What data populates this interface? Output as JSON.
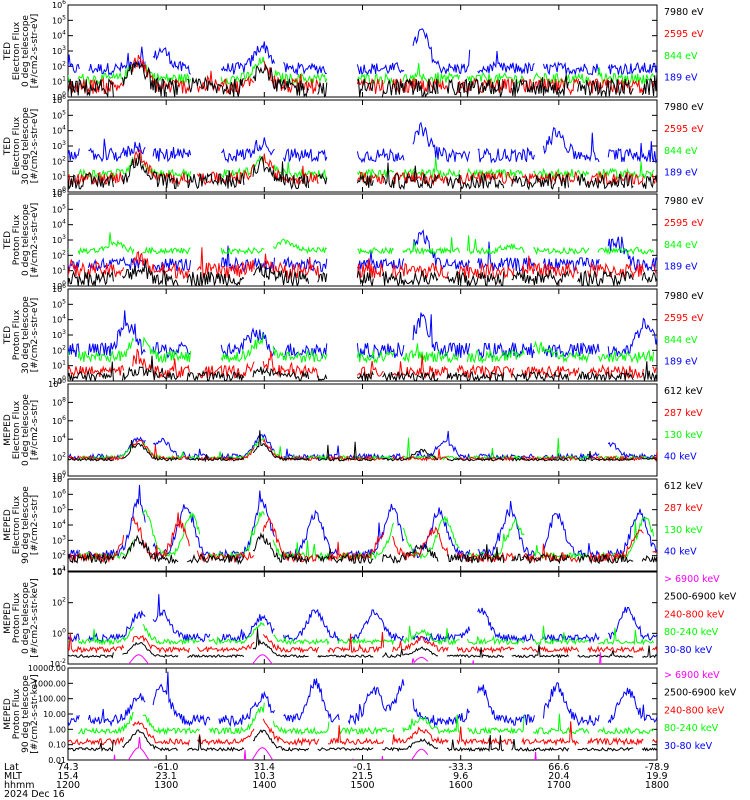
{
  "chart_data": [
    {
      "type": "line",
      "ylabel": [
        "TED",
        "Electron Flux",
        "0 deg telescope",
        "[#/cm2-s-str-eV]"
      ],
      "yscale": "log",
      "ylim_exp": [
        0,
        6
      ],
      "ticks": [
        "10^0",
        "10^1",
        "10^2",
        "10^3",
        "10^4",
        "10^5",
        "10^6"
      ],
      "legend": [
        {
          "label": "7980 eV",
          "color": "#000000"
        },
        {
          "label": "2595 eV",
          "color": "#ff0000"
        },
        {
          "label": "844 eV",
          "color": "#00ff00"
        },
        {
          "label": "189 eV",
          "color": "#0000ff"
        }
      ],
      "series": [
        {
          "color": "#0000ff",
          "base": 1.85,
          "noise": 0.4,
          "bumps": [
            [
              0.12,
              0.5
            ],
            [
              0.16,
              1.2
            ],
            [
              0.33,
              1.5
            ],
            [
              0.6,
              2.4
            ]
          ]
        },
        {
          "color": "#00ff00",
          "base": 1.2,
          "noise": 0.35,
          "bumps": [
            [
              0.12,
              1.2
            ],
            [
              0.33,
              1.1
            ]
          ]
        },
        {
          "color": "#ff0000",
          "base": 0.7,
          "noise": 0.5,
          "bumps": [
            [
              0.12,
              1.6
            ],
            [
              0.33,
              1.4
            ]
          ]
        },
        {
          "color": "#000000",
          "base": 0.6,
          "noise": 0.6,
          "bumps": [
            [
              0.12,
              1.7
            ],
            [
              0.33,
              1.5
            ]
          ]
        }
      ]
    },
    {
      "type": "line",
      "ylabel": [
        "TED",
        "Electron Flux",
        "30 deg telescope",
        "[#/cm2-s-str-eV]"
      ],
      "yscale": "log",
      "ylim_exp": [
        0,
        6
      ],
      "ticks": [
        "10^0",
        "10^1",
        "10^2",
        "10^3",
        "10^4",
        "10^5",
        "10^6"
      ],
      "legend": [
        {
          "label": "7980 eV",
          "color": "#000000"
        },
        {
          "label": "2595 eV",
          "color": "#ff0000"
        },
        {
          "label": "844 eV",
          "color": "#00ff00"
        },
        {
          "label": "189 eV",
          "color": "#0000ff"
        }
      ],
      "series": [
        {
          "color": "#0000ff",
          "base": 2.4,
          "noise": 0.45,
          "bumps": [
            [
              0.12,
              0.6
            ],
            [
              0.33,
              0.8
            ],
            [
              0.6,
              1.6
            ],
            [
              0.83,
              1.5
            ]
          ]
        },
        {
          "color": "#00ff00",
          "base": 1.2,
          "noise": 0.3,
          "bumps": [
            [
              0.12,
              1.0
            ],
            [
              0.33,
              1.0
            ]
          ]
        },
        {
          "color": "#ff0000",
          "base": 0.9,
          "noise": 0.4,
          "bumps": [
            [
              0.12,
              1.5
            ],
            [
              0.33,
              1.3
            ]
          ]
        },
        {
          "color": "#000000",
          "base": 0.7,
          "noise": 0.5,
          "bumps": [
            [
              0.12,
              1.4
            ],
            [
              0.33,
              1.2
            ]
          ]
        }
      ]
    },
    {
      "type": "line",
      "ylabel": [
        "TED",
        "Proton Flux",
        "0 deg telescope",
        "[#/cm2-s-str-eV]"
      ],
      "yscale": "log",
      "ylim_exp": [
        0,
        6
      ],
      "ticks": [
        "10^0",
        "10^1",
        "10^2",
        "10^3",
        "10^4",
        "10^5",
        "10^6"
      ],
      "legend": [
        {
          "label": "7980 eV",
          "color": "#000000"
        },
        {
          "label": "2595 eV",
          "color": "#ff0000"
        },
        {
          "label": "844 eV",
          "color": "#00ff00"
        },
        {
          "label": "189 eV",
          "color": "#0000ff"
        }
      ],
      "series": [
        {
          "color": "#0000ff",
          "base": 1.4,
          "noise": 0.45,
          "bumps": [
            [
              0.6,
              2.0
            ],
            [
              0.93,
              1.5
            ]
          ]
        },
        {
          "color": "#00ff00",
          "base": 2.3,
          "noise": 0.2,
          "bumps": [
            [
              0.08,
              0.5
            ],
            [
              0.37,
              0.6
            ],
            [
              0.75,
              0.3
            ]
          ]
        },
        {
          "color": "#ff0000",
          "base": 1.0,
          "noise": 0.5,
          "bumps": [
            [
              0.12,
              0.8
            ],
            [
              0.33,
              0.7
            ]
          ]
        },
        {
          "color": "#000000",
          "base": 0.5,
          "noise": 0.5,
          "bumps": [
            [
              0.12,
              0.6
            ],
            [
              0.33,
              0.5
            ]
          ]
        }
      ]
    },
    {
      "type": "line",
      "ylabel": [
        "TED",
        "Proton Flux",
        "30 deg telescope",
        "[#/cm2-s-str-eV]"
      ],
      "yscale": "log",
      "ylim_exp": [
        0,
        6
      ],
      "ticks": [
        "10^0",
        "10^1",
        "10^2",
        "10^3",
        "10^4",
        "10^5",
        "10^6"
      ],
      "legend": [
        {
          "label": "7980 eV",
          "color": "#000000"
        },
        {
          "label": "2595 eV",
          "color": "#ff0000"
        },
        {
          "label": "844 eV",
          "color": "#00ff00"
        },
        {
          "label": "189 eV",
          "color": "#0000ff"
        }
      ],
      "series": [
        {
          "color": "#0000ff",
          "base": 2.0,
          "noise": 0.5,
          "bumps": [
            [
              0.1,
              1.6
            ],
            [
              0.32,
              1.2
            ],
            [
              0.6,
              2.0
            ],
            [
              0.98,
              1.8
            ]
          ]
        },
        {
          "color": "#00ff00",
          "base": 1.6,
          "noise": 0.4,
          "bumps": [
            [
              0.12,
              1.2
            ],
            [
              0.33,
              1.2
            ],
            [
              0.8,
              0.6
            ]
          ]
        },
        {
          "color": "#ff0000",
          "base": 0.6,
          "noise": 0.4,
          "bumps": [
            [
              0.12,
              0.9
            ],
            [
              0.33,
              0.7
            ]
          ]
        },
        {
          "color": "#000000",
          "base": 0.3,
          "noise": 0.3,
          "bumps": [
            [
              0.12,
              0.4
            ],
            [
              0.33,
              0.4
            ]
          ]
        }
      ]
    },
    {
      "type": "line",
      "ylabel": [
        "MEPED",
        "Electron Flux",
        "0 deg telescope",
        "[#/cm2-s-str]"
      ],
      "yscale": "log",
      "ylim_exp": [
        0,
        10
      ],
      "ticks": [
        "10^0",
        "10^2",
        "10^4",
        "10^6",
        "10^8",
        "10^10"
      ],
      "legend": [
        {
          "label": "612 keV",
          "color": "#000000"
        },
        {
          "label": "287 keV",
          "color": "#ff0000"
        },
        {
          "label": "130 keV",
          "color": "#00ff00"
        },
        {
          "label": "40 keV",
          "color": "#0000ff"
        }
      ],
      "series": [
        {
          "color": "#0000ff",
          "base": 2.1,
          "noise": 0.3,
          "bumps": [
            [
              0.12,
              2.0
            ],
            [
              0.16,
              1.8
            ],
            [
              0.33,
              2.2
            ],
            [
              0.64,
              1.8
            ],
            [
              0.92,
              1.4
            ]
          ]
        },
        {
          "color": "#00ff00",
          "base": 2.0,
          "noise": 0.2,
          "bumps": [
            [
              0.12,
              1.9
            ],
            [
              0.33,
              2.0
            ]
          ]
        },
        {
          "color": "#ff0000",
          "base": 1.9,
          "noise": 0.2,
          "bumps": [
            [
              0.12,
              1.9
            ],
            [
              0.33,
              1.9
            ]
          ]
        },
        {
          "color": "#000000",
          "base": 1.8,
          "noise": 0.15,
          "bumps": [
            [
              0.12,
              1.6
            ],
            [
              0.33,
              1.6
            ],
            [
              0.6,
              1.0
            ]
          ]
        }
      ]
    },
    {
      "type": "line",
      "ylabel": [
        "MEPED",
        "Electron Flux",
        "90 deg telescope",
        "[#/cm2-s-str]"
      ],
      "yscale": "log",
      "ylim_exp": [
        1,
        7
      ],
      "ticks": [
        "10^1",
        "10^2",
        "10^3",
        "10^4",
        "10^5",
        "10^6",
        "10^7"
      ],
      "legend": [
        {
          "label": "612 keV",
          "color": "#000000"
        },
        {
          "label": "287 keV",
          "color": "#ff0000"
        },
        {
          "label": "130 keV",
          "color": "#00ff00"
        },
        {
          "label": "40 keV",
          "color": "#0000ff"
        }
      ],
      "series": [
        {
          "color": "#0000ff",
          "base": 2.1,
          "noise": 0.3,
          "bumps": [
            [
              0.12,
              3.4
            ],
            [
              0.2,
              3.2
            ],
            [
              0.33,
              3.4
            ],
            [
              0.42,
              2.6
            ],
            [
              0.55,
              3.0
            ],
            [
              0.63,
              2.8
            ],
            [
              0.75,
              2.8
            ],
            [
              0.83,
              2.6
            ],
            [
              0.97,
              2.8
            ]
          ]
        },
        {
          "color": "#00ff00",
          "base": 2.0,
          "noise": 0.2,
          "bumps": [
            [
              0.13,
              2.8
            ],
            [
              0.21,
              2.6
            ],
            [
              0.33,
              2.8
            ],
            [
              0.56,
              2.4
            ],
            [
              0.64,
              2.4
            ],
            [
              0.76,
              2.2
            ],
            [
              0.98,
              2.4
            ]
          ]
        },
        {
          "color": "#ff0000",
          "base": 1.9,
          "noise": 0.3,
          "bumps": [
            [
              0.11,
              2.6
            ],
            [
              0.19,
              2.2
            ],
            [
              0.34,
              2.4
            ],
            [
              0.54,
              1.8
            ],
            [
              0.62,
              1.8
            ],
            [
              0.97,
              1.8
            ]
          ]
        },
        {
          "color": "#000000",
          "base": 1.8,
          "noise": 0.3,
          "bumps": [
            [
              0.12,
              1.2
            ],
            [
              0.33,
              1.4
            ],
            [
              0.6,
              0.8
            ]
          ]
        }
      ]
    },
    {
      "type": "line",
      "ylabel": [
        "MEPED",
        "Proton Flux",
        "0 deg telescope",
        "[#/cm2-s-str-keV]"
      ],
      "yscale": "log",
      "ylim_exp": [
        -2,
        5
      ],
      "ticks": [
        "10^-2",
        "10^0",
        "10^2",
        "10^4"
      ],
      "legend": [
        {
          "label": "> 6900 keV",
          "color": "#ff00ff"
        },
        {
          "label": "2500-6900 keV",
          "color": "#000000"
        },
        {
          "label": "240-800 keV",
          "color": "#ff0000"
        },
        {
          "label": "80-240 keV",
          "color": "#00ff00"
        },
        {
          "label": "30-80 keV",
          "color": "#0000ff"
        }
      ],
      "series": [
        {
          "color": "#0000ff",
          "base": 0.0,
          "noise": 0.3,
          "bumps": [
            [
              0.12,
              1.8
            ],
            [
              0.16,
              2.0
            ],
            [
              0.33,
              1.6
            ],
            [
              0.42,
              2.0
            ],
            [
              0.52,
              2.0
            ],
            [
              0.7,
              2.2
            ],
            [
              0.95,
              2.2
            ]
          ]
        },
        {
          "color": "#00ff00",
          "base": -0.3,
          "noise": 0.2,
          "bumps": [
            [
              0.12,
              1.5
            ],
            [
              0.33,
              1.4
            ],
            [
              0.6,
              0.8
            ]
          ]
        },
        {
          "color": "#ff0000",
          "base": -0.9,
          "noise": 0.2,
          "bumps": [
            [
              0.12,
              1.0
            ],
            [
              0.33,
              1.0
            ],
            [
              0.6,
              0.8
            ]
          ]
        },
        {
          "color": "#000000",
          "base": -1.4,
          "noise": 0.1,
          "bumps": [
            [
              0.12,
              1.0
            ],
            [
              0.33,
              1.0
            ],
            [
              0.6,
              0.6
            ]
          ]
        },
        {
          "color": "#ff00ff",
          "base": -2.5,
          "noise": 0.0,
          "bumps": [
            [
              0.12,
              1.2
            ],
            [
              0.33,
              1.2
            ],
            [
              0.6,
              1.0
            ]
          ]
        }
      ]
    },
    {
      "type": "line",
      "ylabel": [
        "MEPED",
        "Proton Flux",
        "90 deg telescope",
        "[#/cm2-s-str-keV]"
      ],
      "yscale": "log",
      "ylim_exp": [
        -2,
        4
      ],
      "ticks": [
        "0.01",
        "0.10",
        "1.00",
        "10.00",
        "100.00",
        "1000.00",
        "10000.00"
      ],
      "legend": [
        {
          "label": "> 6900 keV",
          "color": "#ff00ff"
        },
        {
          "label": "2500-6900 keV",
          "color": "#000000"
        },
        {
          "label": "240-800 keV",
          "color": "#ff0000"
        },
        {
          "label": "80-240 keV",
          "color": "#00ff00"
        },
        {
          "label": "30-80 keV",
          "color": "#0000ff"
        }
      ],
      "series": [
        {
          "color": "#0000ff",
          "base": 0.6,
          "noise": 0.35,
          "bumps": [
            [
              0.12,
              1.6
            ],
            [
              0.16,
              2.2
            ],
            [
              0.33,
              1.5
            ],
            [
              0.42,
              2.4
            ],
            [
              0.52,
              2.0
            ],
            [
              0.57,
              2.4
            ],
            [
              0.7,
              2.2
            ],
            [
              0.83,
              2.2
            ],
            [
              0.95,
              2.0
            ]
          ]
        },
        {
          "color": "#00ff00",
          "base": -0.1,
          "noise": 0.2,
          "bumps": [
            [
              0.12,
              1.4
            ],
            [
              0.33,
              1.4
            ],
            [
              0.6,
              0.8
            ]
          ]
        },
        {
          "color": "#ff0000",
          "base": -0.8,
          "noise": 0.2,
          "bumps": [
            [
              0.12,
              1.3
            ],
            [
              0.33,
              1.3
            ],
            [
              0.6,
              0.8
            ]
          ]
        },
        {
          "color": "#000000",
          "base": -1.3,
          "noise": 0.1,
          "bumps": [
            [
              0.12,
              1.2
            ],
            [
              0.33,
              1.2
            ],
            [
              0.6,
              0.6
            ]
          ]
        },
        {
          "color": "#ff00ff",
          "base": -2.5,
          "noise": 0.0,
          "bumps": [
            [
              0.12,
              1.3
            ],
            [
              0.33,
              1.3
            ],
            [
              0.6,
              1.2
            ]
          ]
        }
      ]
    }
  ],
  "xaxis": {
    "row_labels": [
      "Lat",
      "MLT",
      "hhmm",
      "2024 Dec 16"
    ],
    "ticks": [
      {
        "frac": 0.0,
        "lat": "74.3",
        "mlt": "15.4",
        "hhmm": "1200"
      },
      {
        "frac": 0.1667,
        "lat": "-61.0",
        "mlt": "23.1",
        "hhmm": "1300"
      },
      {
        "frac": 0.3333,
        "lat": "31.4",
        "mlt": "10.3",
        "hhmm": "1400"
      },
      {
        "frac": 0.5,
        "lat": "-0.1",
        "mlt": "21.5",
        "hhmm": "1500"
      },
      {
        "frac": 0.6667,
        "lat": "-33.3",
        "mlt": "9.6",
        "hhmm": "1600"
      },
      {
        "frac": 0.8333,
        "lat": "66.6",
        "mlt": "20.4",
        "hhmm": "1700"
      },
      {
        "frac": 1.0,
        "lat": "-78.9",
        "mlt": "19.9",
        "hhmm": "1800"
      }
    ]
  }
}
